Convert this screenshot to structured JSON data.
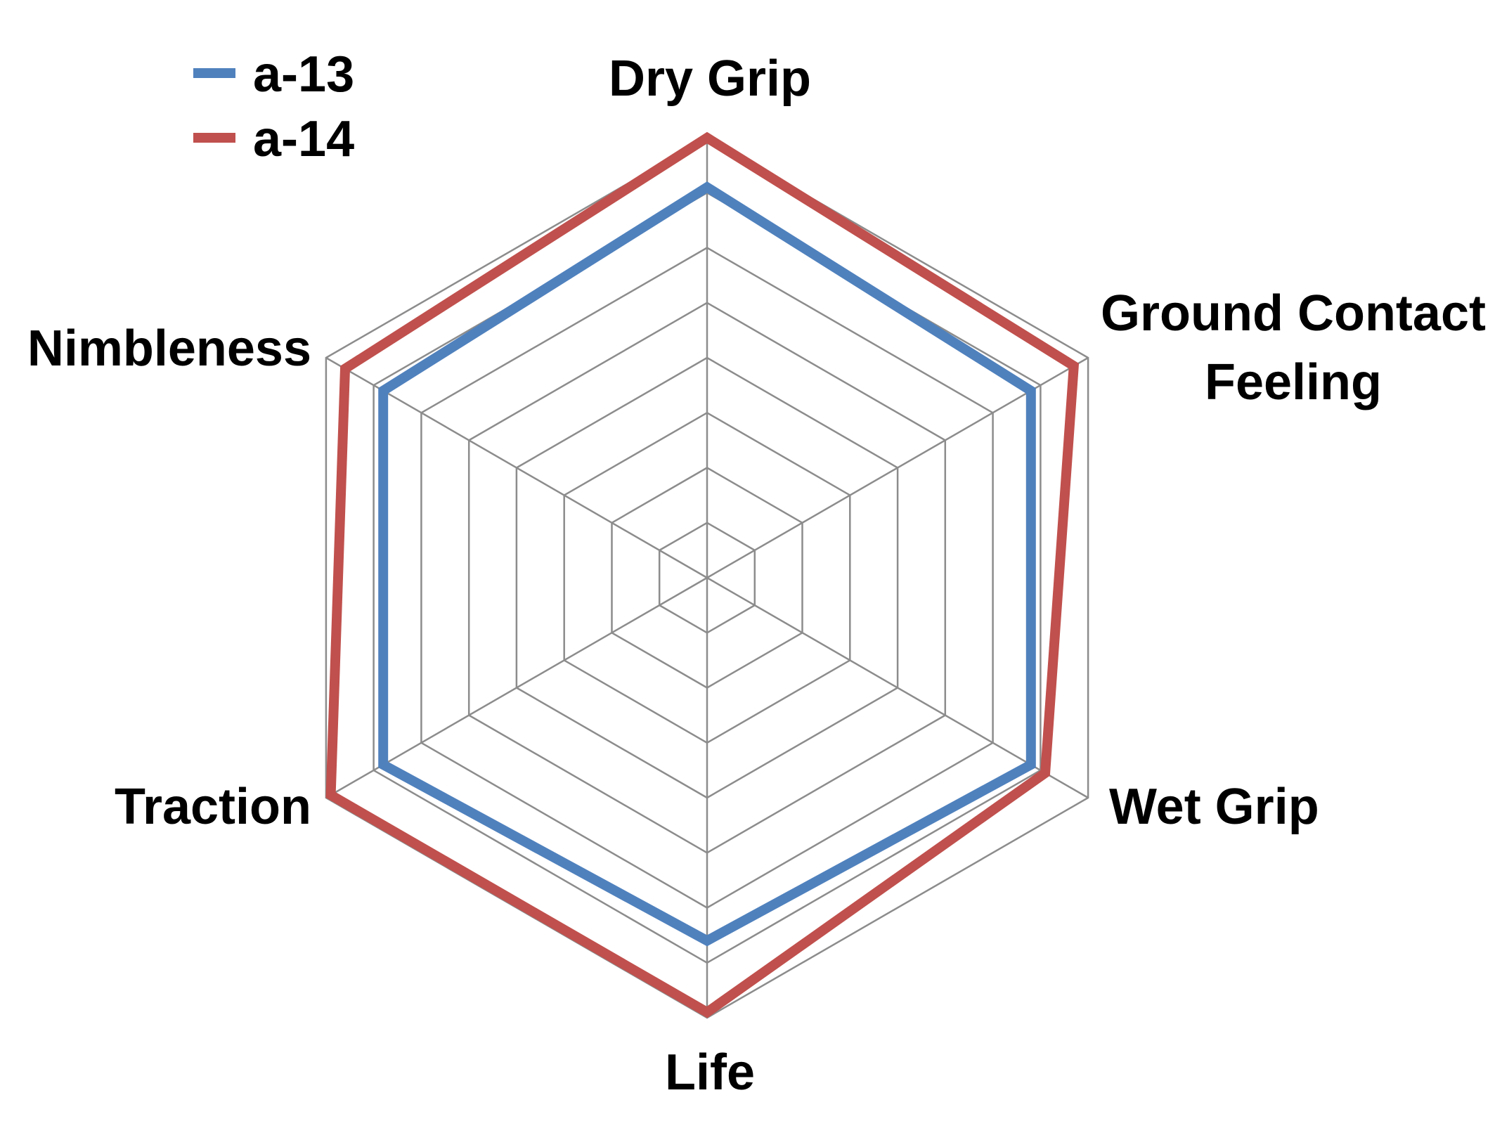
{
  "chart_data": {
    "type": "radar",
    "axes": [
      "Dry Grip",
      "Ground Contact Feeling",
      "Wet Grip",
      "Life",
      "Traction",
      "Nimbleness"
    ],
    "axis_label_lines": [
      [
        "Dry Grip"
      ],
      [
        "Ground Contact",
        "Feeling"
      ],
      [
        "Wet Grip"
      ],
      [
        "Life"
      ],
      [
        "Traction"
      ],
      [
        "Nimbleness"
      ]
    ],
    "range": [
      0,
      8
    ],
    "rings": 8,
    "grid": true,
    "legend_position": "top-left",
    "series": [
      {
        "name": "a-13",
        "color": "#4F81BD",
        "values": [
          7.1,
          6.8,
          6.8,
          6.6,
          6.8,
          6.8
        ]
      },
      {
        "name": "a-14",
        "color": "#C0504D",
        "values": [
          8.0,
          7.7,
          7.1,
          7.9,
          7.9,
          7.6
        ]
      }
    ],
    "grid_color": "#8C8C8C"
  }
}
